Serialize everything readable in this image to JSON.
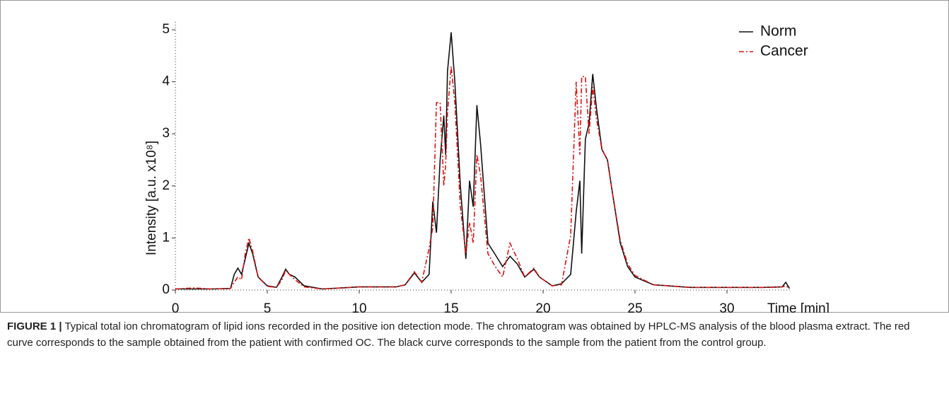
{
  "chart_data": {
    "type": "line",
    "y_label": "Intensity [a.u. x10⁸]",
    "x_label": "Time [min]",
    "x": [
      0,
      1,
      2,
      3,
      3.2,
      3.4,
      3.6,
      3.8,
      4,
      4.2,
      4.5,
      5,
      5.5,
      5.8,
      6,
      6.2,
      6.5,
      7,
      8,
      9,
      10,
      12,
      12.5,
      13,
      13.4,
      13.8,
      14,
      14.2,
      14.4,
      14.6,
      14.7,
      14.8,
      15,
      15.2,
      15.5,
      15.8,
      16,
      16.2,
      16.4,
      16.6,
      17,
      17.4,
      17.8,
      18.2,
      18.6,
      19,
      19.5,
      19.8,
      20.5,
      21,
      21.5,
      21.8,
      22,
      22.1,
      22.3,
      22.5,
      22.7,
      22.9,
      23.2,
      23.5,
      23.8,
      24.2,
      24.6,
      25,
      26,
      28,
      32,
      33,
      33.2,
      33.4
    ],
    "series": [
      {
        "name": "Norm",
        "color": "#111111",
        "dash": "solid",
        "values": [
          0.02,
          0.02,
          0.02,
          0.03,
          0.3,
          0.42,
          0.3,
          0.6,
          0.9,
          0.7,
          0.25,
          0.08,
          0.05,
          0.25,
          0.4,
          0.3,
          0.25,
          0.08,
          0.02,
          0.04,
          0.06,
          0.06,
          0.1,
          0.33,
          0.15,
          0.3,
          1.7,
          1.1,
          2.5,
          3.35,
          2.6,
          4.2,
          4.95,
          4.0,
          2.0,
          0.6,
          2.1,
          1.6,
          3.55,
          2.8,
          0.9,
          0.68,
          0.45,
          0.65,
          0.5,
          0.25,
          0.4,
          0.25,
          0.08,
          0.12,
          0.3,
          1.5,
          2.1,
          0.7,
          2.9,
          3.2,
          4.15,
          3.5,
          2.7,
          2.5,
          1.8,
          0.9,
          0.45,
          0.25,
          0.1,
          0.05,
          0.05,
          0.06,
          0.15,
          0.03
        ]
      },
      {
        "name": "Cancer",
        "color": "#dd1111",
        "dash": "dashdot",
        "values": [
          0.02,
          0.04,
          0.02,
          0.03,
          0.15,
          0.25,
          0.2,
          0.7,
          1.0,
          0.75,
          0.25,
          0.07,
          0.05,
          0.2,
          0.38,
          0.3,
          0.2,
          0.06,
          0.02,
          0.04,
          0.06,
          0.06,
          0.1,
          0.35,
          0.15,
          0.8,
          1.2,
          3.6,
          3.6,
          2.0,
          2.4,
          3.4,
          4.3,
          3.6,
          1.6,
          0.7,
          1.3,
          0.9,
          2.6,
          2.2,
          0.7,
          0.45,
          0.25,
          0.9,
          0.6,
          0.25,
          0.42,
          0.25,
          0.08,
          0.1,
          1.05,
          4.0,
          2.6,
          4.1,
          4.1,
          3.0,
          3.9,
          3.3,
          2.7,
          2.5,
          1.8,
          0.95,
          0.5,
          0.28,
          0.1,
          0.05,
          0.05,
          0.06,
          0.08,
          0.03
        ]
      }
    ],
    "xlim": [
      0,
      33.5
    ],
    "xticks": [
      0,
      5,
      10,
      15,
      20,
      25,
      30
    ],
    "ylim": [
      0,
      5.15
    ],
    "yticks": [
      0,
      1,
      2,
      3,
      4,
      5
    ],
    "legend": "top-right"
  },
  "caption": {
    "label": "FIGURE 1 |",
    "text": "Typical total ion chromatogram of lipid ions recorded in the positive ion detection mode. The chromatogram was obtained by HPLC-MS analysis of the blood plasma extract. The red curve corresponds to the sample obtained from the patient with confirmed OC. The black curve corresponds to the sample from the patient from the control group."
  }
}
